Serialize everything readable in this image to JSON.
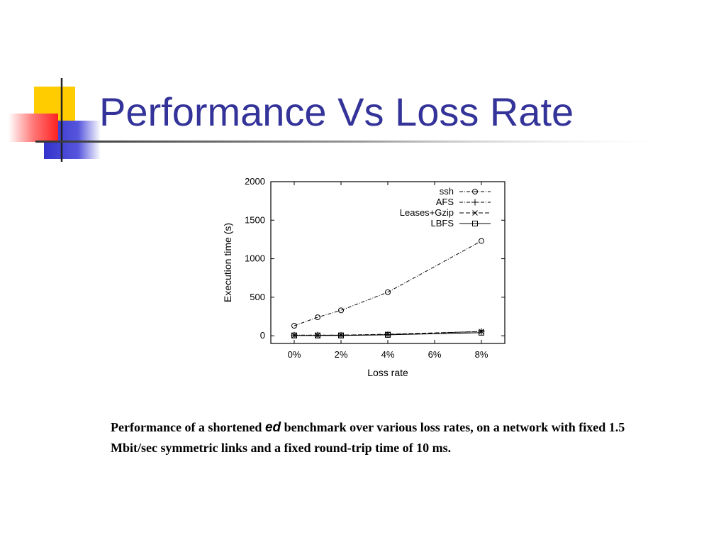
{
  "slide": {
    "title": "Performance Vs Loss Rate",
    "caption": {
      "before": "Performance of a shortened ",
      "emphasis": "ed",
      "after": " benchmark over various loss rates, on a network with fixed 1.5 Mbit/sec symmetric links and a fixed round-trip time of 10 ms."
    }
  },
  "colors": {
    "title": "#333399",
    "deco_yellow": "#ffcc00",
    "deco_blue": "#3333cc",
    "deco_red": "#ff3333"
  },
  "chart_data": {
    "type": "line",
    "title": "",
    "xlabel": "Loss rate",
    "ylabel": "Execution time (s)",
    "x": [
      0,
      1,
      2,
      4,
      8
    ],
    "xlim": [
      -1,
      9
    ],
    "ylim": [
      -100,
      2000
    ],
    "x_ticks": [
      0,
      2,
      4,
      6,
      8
    ],
    "x_tick_labels": [
      "0%",
      "2%",
      "4%",
      "6%",
      "8%"
    ],
    "y_ticks": [
      0,
      500,
      1000,
      1500,
      2000
    ],
    "y_tick_labels": [
      "0",
      "500",
      "1000",
      "1500",
      "2000"
    ],
    "grid": false,
    "legend_position": "top-right",
    "series": [
      {
        "name": "ssh",
        "marker": "circle",
        "dash": "dashdot",
        "values": [
          130,
          240,
          330,
          565,
          1230
        ]
      },
      {
        "name": "AFS",
        "marker": "plus",
        "dash": "dashdot",
        "values": [
          8,
          8,
          8,
          15,
          55
        ]
      },
      {
        "name": "Leases+Gzip",
        "marker": "x",
        "dash": "dash",
        "values": [
          5,
          5,
          8,
          20,
          55
        ]
      },
      {
        "name": "LBFS",
        "marker": "square",
        "dash": "solid",
        "values": [
          4,
          4,
          4,
          12,
          40
        ]
      }
    ]
  }
}
